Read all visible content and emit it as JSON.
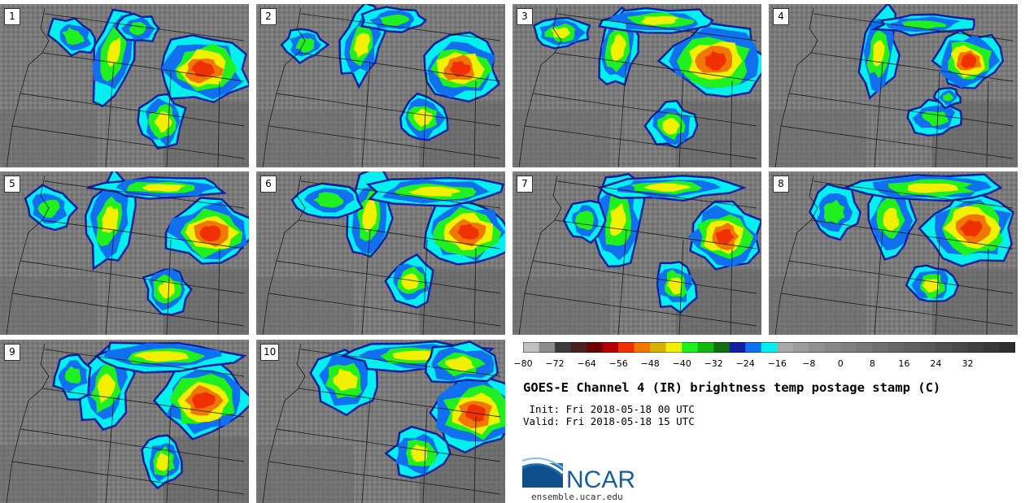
{
  "panels": [
    {
      "label": "1",
      "variant": 0
    },
    {
      "label": "2",
      "variant": 1
    },
    {
      "label": "3",
      "variant": 2
    },
    {
      "label": "4",
      "variant": 3
    },
    {
      "label": "5",
      "variant": 4
    },
    {
      "label": "6",
      "variant": 5
    },
    {
      "label": "7",
      "variant": 6
    },
    {
      "label": "8",
      "variant": 7
    },
    {
      "label": "9",
      "variant": 8
    },
    {
      "label": "10",
      "variant": 9
    }
  ],
  "colorbar": {
    "colors": [
      "#c0c0c0",
      "#8c8c8c",
      "#3c3c3c",
      "#4a2020",
      "#6e0000",
      "#b40000",
      "#f03000",
      "#f07800",
      "#d8b000",
      "#f0f000",
      "#20f020",
      "#10b810",
      "#107010",
      "#1020a0",
      "#1070f0",
      "#00f0f0",
      "#a8a8a8",
      "#9c9c9c",
      "#909090",
      "#888888",
      "#808080",
      "#787878",
      "#707070",
      "#686868",
      "#606060",
      "#585858",
      "#505050",
      "#484848",
      "#404040",
      "#383838",
      "#303030"
    ],
    "tick_labels": [
      "−80",
      "−72",
      "−64",
      "−56",
      "−48",
      "−40",
      "−32",
      "−24",
      "−16",
      "−8",
      "0",
      "8",
      "16",
      "24",
      "32"
    ]
  },
  "title": "GOES-E Channel 4 (IR) brightness temp postage stamp (C)",
  "init_text": " Init: Fri 2018-05-18 00 UTC",
  "valid_text": "Valid: Fri 2018-05-18 15 UTC",
  "logo": {
    "name": "NCAR",
    "url": "ensemble.ucar.edu"
  }
}
